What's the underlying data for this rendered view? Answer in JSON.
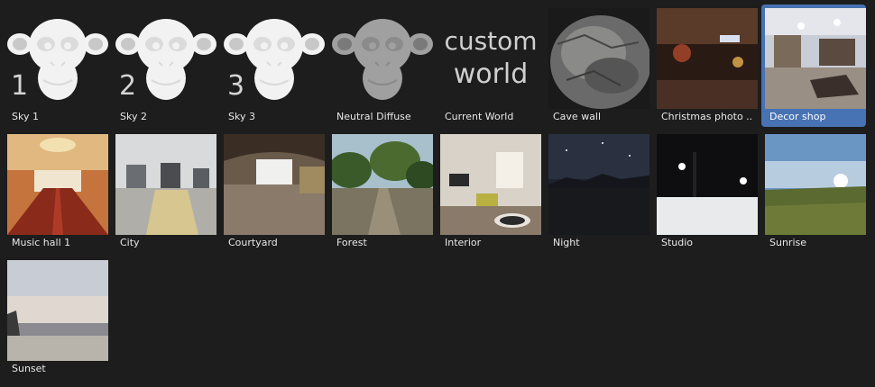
{
  "panel": {
    "name": "world-preset-browser"
  },
  "colors": {
    "background": "#1d1d1d",
    "selected": "#4772b3",
    "label": "#e8e8e8"
  },
  "items": [
    {
      "label": "Sky 1",
      "kind": "monkey",
      "numeral": "1",
      "selected": false
    },
    {
      "label": "Sky 2",
      "kind": "monkey",
      "numeral": "2",
      "selected": false
    },
    {
      "label": "Sky 3",
      "kind": "monkey",
      "numeral": "3",
      "selected": false
    },
    {
      "label": "Neutral Diffuse",
      "kind": "monkey-gray",
      "numeral": "",
      "selected": false
    },
    {
      "label": "Current World",
      "kind": "text",
      "text_line1": "custom",
      "text_line2": "world",
      "selected": false
    },
    {
      "label": "Cave wall",
      "kind": "photo-cave",
      "selected": false
    },
    {
      "label": "Christmas photo ...",
      "kind": "photo-christmas",
      "selected": false
    },
    {
      "label": "Decor shop",
      "kind": "photo-decor",
      "selected": true
    },
    {
      "label": "Music hall 1",
      "kind": "photo-musichall",
      "selected": false
    },
    {
      "label": "City",
      "kind": "photo-city",
      "selected": false
    },
    {
      "label": "Courtyard",
      "kind": "photo-courtyard",
      "selected": false
    },
    {
      "label": "Forest",
      "kind": "photo-forest",
      "selected": false
    },
    {
      "label": "Interior",
      "kind": "photo-interior",
      "selected": false
    },
    {
      "label": "Night",
      "kind": "photo-night",
      "selected": false
    },
    {
      "label": "Studio",
      "kind": "photo-studio",
      "selected": false
    },
    {
      "label": "Sunrise",
      "kind": "photo-sunrise",
      "selected": false
    },
    {
      "label": "Sunset",
      "kind": "photo-sunset",
      "selected": false
    }
  ]
}
